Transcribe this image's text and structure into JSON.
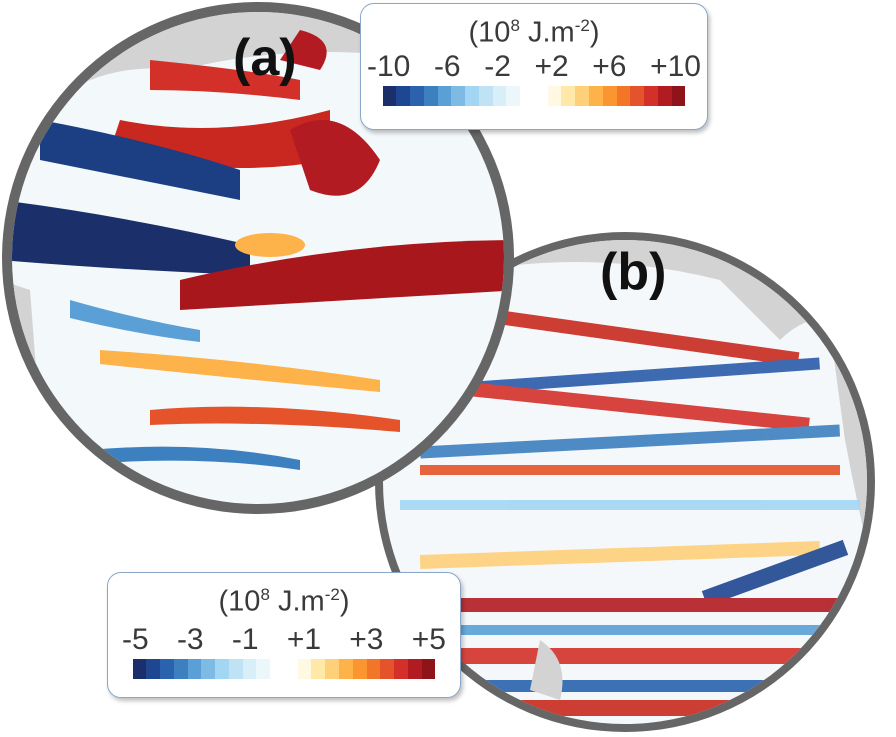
{
  "panels": [
    {
      "label": "(a)",
      "units_base": "(10",
      "units_exp": "8",
      "units_mid": " J.m",
      "units_exp2": "-2",
      "units_end": ")",
      "ticks": [
        "-10",
        "-6",
        "-2",
        "+2",
        "+6",
        "+10"
      ]
    },
    {
      "label": "(b)",
      "units_base": "(10",
      "units_exp": "8",
      "units_mid": " J.m",
      "units_exp2": "-2",
      "units_end": ")",
      "ticks": [
        "-5",
        "-3",
        "-1",
        "+1",
        "+3",
        "+5"
      ]
    }
  ],
  "colorbar": [
    "#1b2f6b",
    "#1f4690",
    "#2a62ad",
    "#3d80c0",
    "#5aa0d6",
    "#7dbbe5",
    "#a3d6f3",
    "#bfe3f5",
    "#d8eff9",
    "#ecf7fc",
    "#ffffff",
    "#ffffff",
    "#fff8e2",
    "#ffe8a8",
    "#fed07a",
    "#fdb24a",
    "#fa9530",
    "#f27627",
    "#e5532a",
    "#d4302a",
    "#b31b22",
    "#8e1419"
  ],
  "colors": {
    "land": "#d3d3d3",
    "rim": "#666666",
    "legend_border": "#8aa6c8"
  }
}
